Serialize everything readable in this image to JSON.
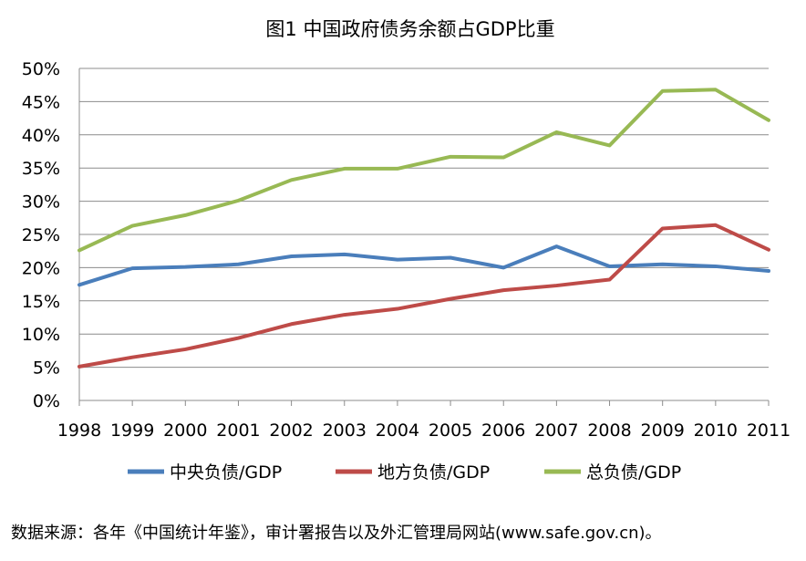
{
  "chart_data": {
    "type": "line",
    "title": "图1 中国政府债务余额占GDP比重",
    "xlabel": "",
    "ylabel": "",
    "categories": [
      "1998",
      "1999",
      "2000",
      "2001",
      "2002",
      "2003",
      "2004",
      "2005",
      "2006",
      "2007",
      "2008",
      "2009",
      "2010",
      "2011"
    ],
    "ylim": [
      0,
      50
    ],
    "yticks": [
      0,
      5,
      10,
      15,
      20,
      25,
      30,
      35,
      40,
      45,
      50
    ],
    "ytick_suffix": "%",
    "grid": true,
    "legend_position": "bottom",
    "series": [
      {
        "name": "中央负债/GDP",
        "color": "#4a7ebb",
        "values": [
          17.4,
          19.9,
          20.1,
          20.5,
          21.7,
          22.0,
          21.2,
          21.5,
          20.0,
          23.2,
          20.2,
          20.5,
          20.2,
          19.5
        ]
      },
      {
        "name": "地方负债/GDP",
        "color": "#be4b48",
        "values": [
          5.1,
          6.5,
          7.7,
          9.4,
          11.5,
          12.9,
          13.8,
          15.3,
          16.6,
          17.3,
          18.2,
          25.9,
          26.4,
          22.7
        ]
      },
      {
        "name": "总负债/GDP",
        "color": "#98b954",
        "values": [
          22.6,
          26.3,
          27.9,
          30.1,
          33.2,
          34.9,
          34.9,
          36.7,
          36.6,
          40.4,
          38.4,
          46.6,
          46.8,
          42.2
        ]
      }
    ]
  },
  "source_note": "数据来源：各年《中国统计年鉴》，审计署报告以及外汇管理局网站(www.safe.gov.cn)。"
}
